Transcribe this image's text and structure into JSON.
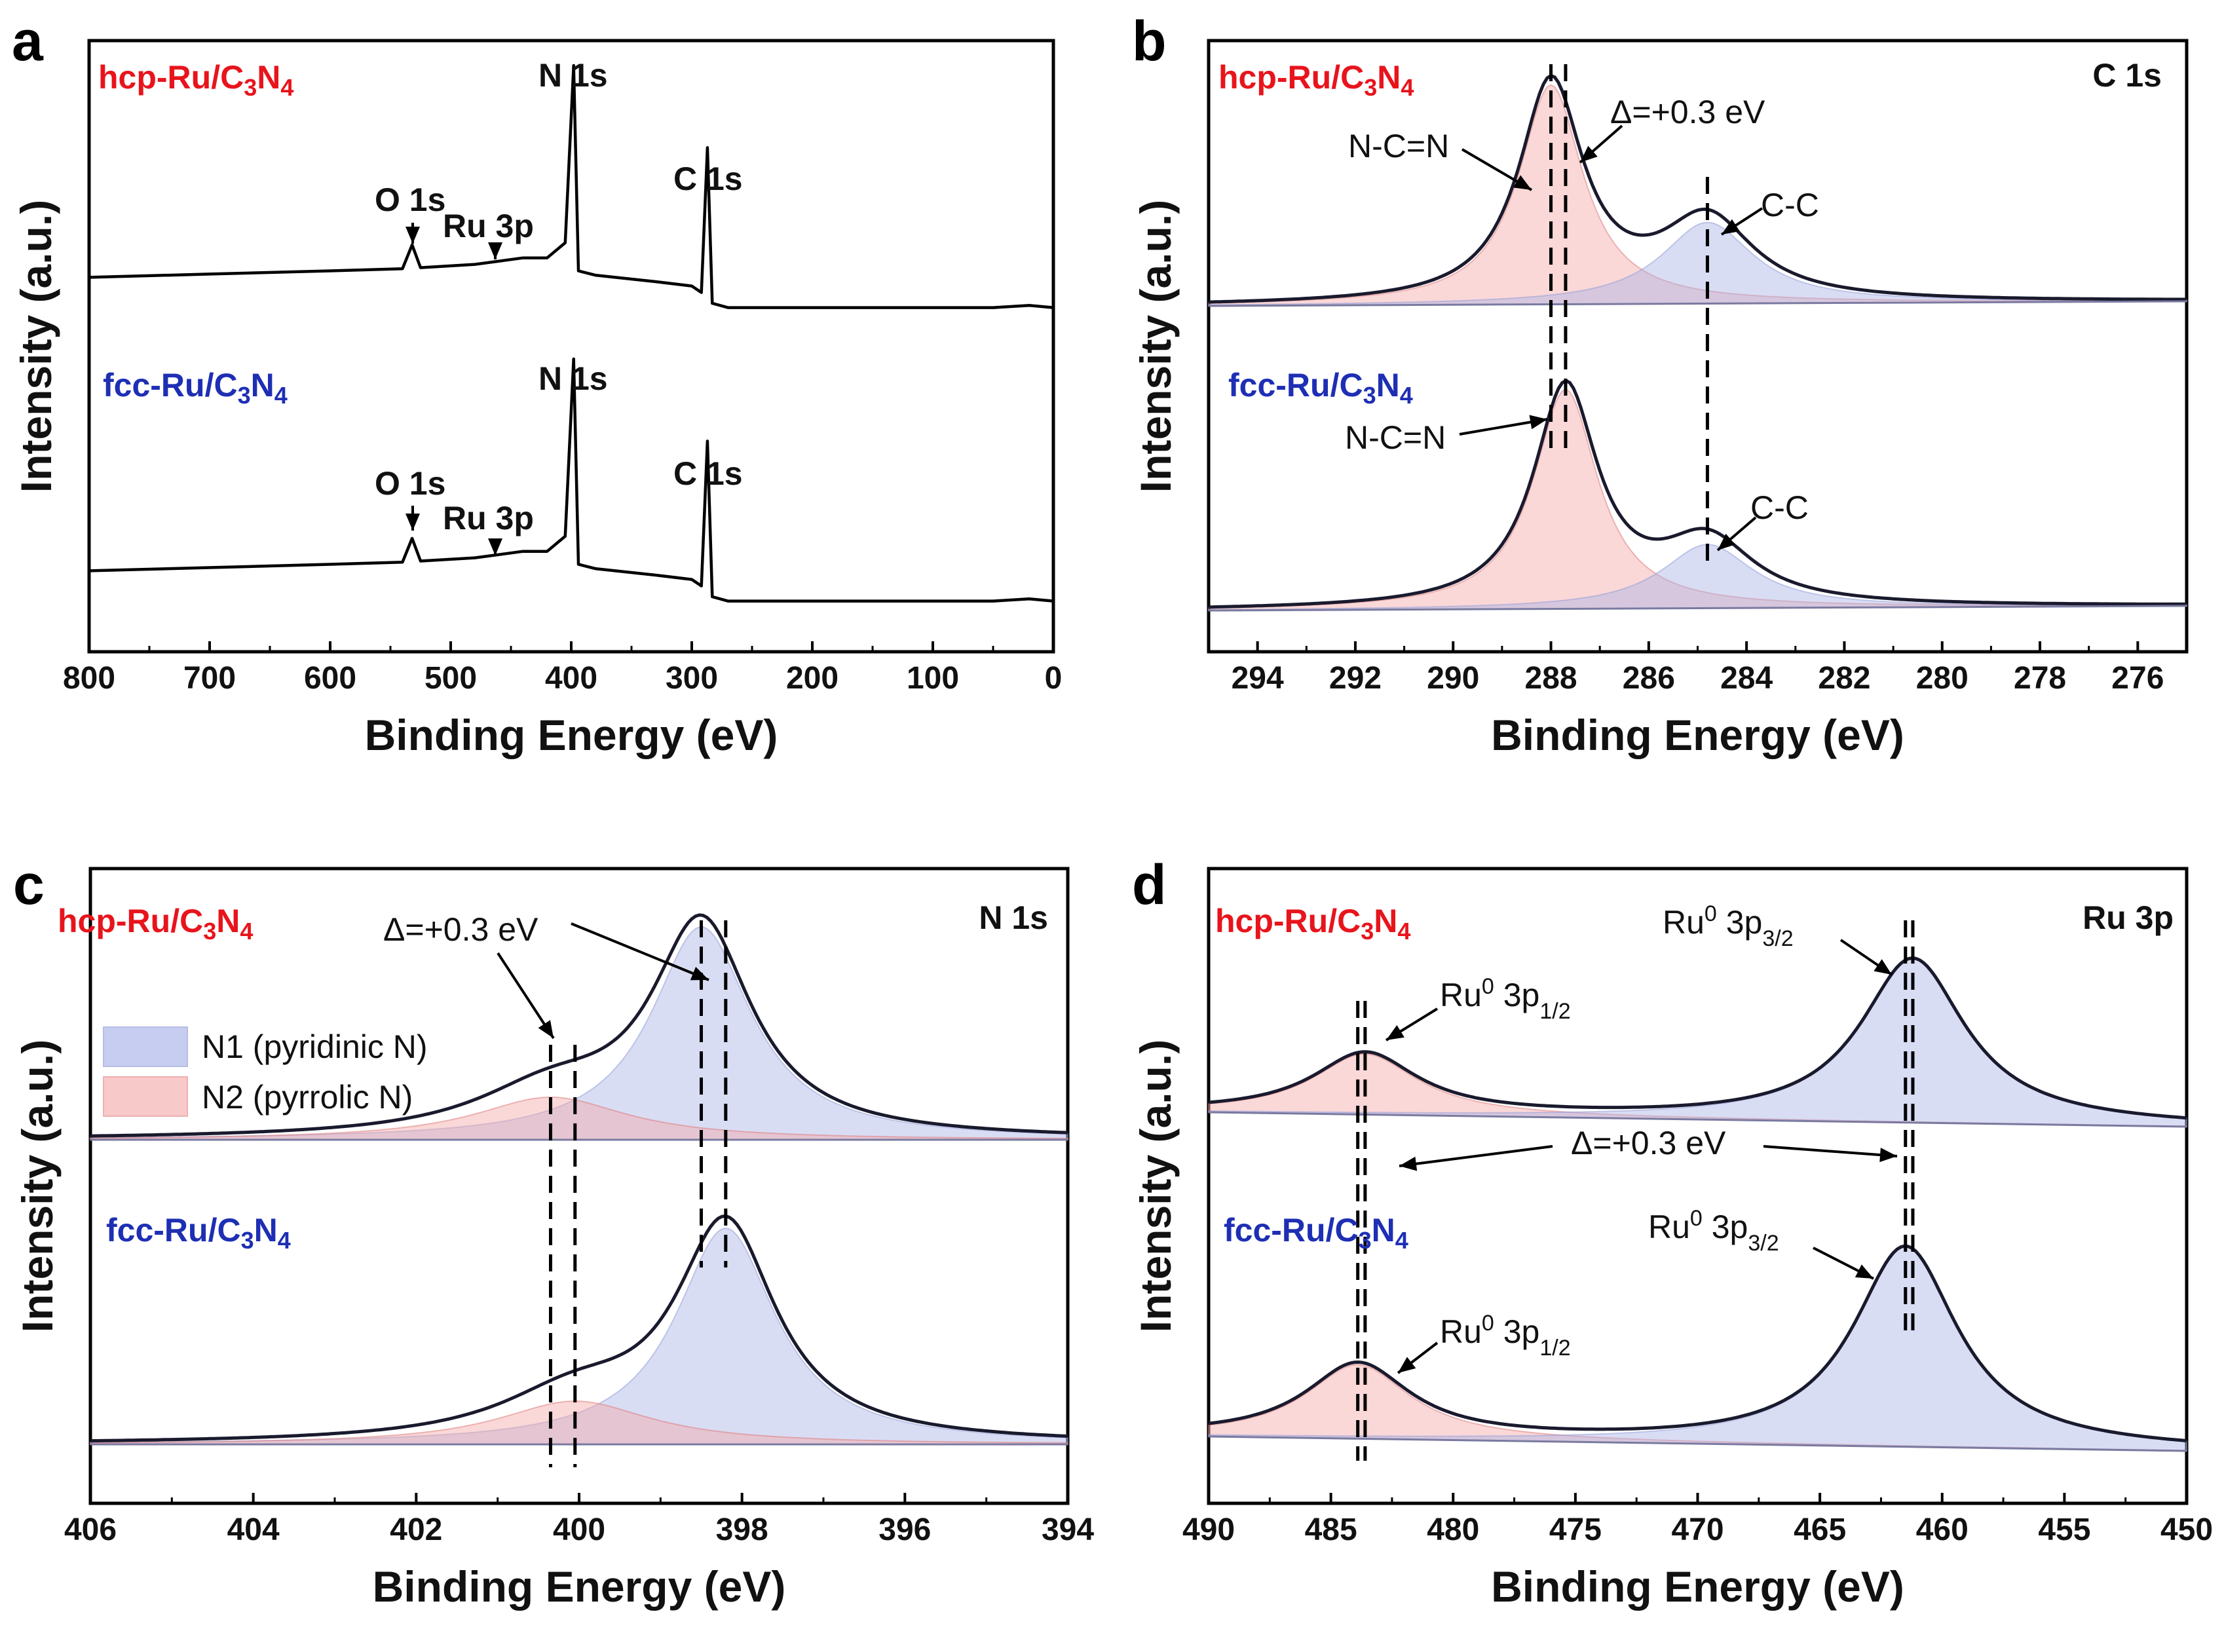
{
  "chart_data": [
    {
      "panel": "a",
      "type": "line",
      "title": "",
      "xlabel": "Binding Energy (eV)",
      "ylabel": "Intensity (a.u.)",
      "xlim": [
        800,
        0
      ],
      "xticks": [
        800,
        700,
        600,
        500,
        400,
        300,
        200,
        100,
        0
      ],
      "samples": [
        {
          "name": "hcp-Ru/C3N4",
          "color": "#e8141c"
        },
        {
          "name": "fcc-Ru/C3N4",
          "color": "#1e2fb4"
        }
      ],
      "peaks": [
        {
          "label": "N 1s",
          "x": 398
        },
        {
          "label": "C 1s",
          "x": 287
        },
        {
          "label": "O 1s",
          "x": 532
        },
        {
          "label": "Ru 3p",
          "x": 462
        }
      ],
      "series": [
        {
          "name": "hcp-Ru/C3N4 survey",
          "x": [
            800,
            700,
            600,
            540,
            532,
            525,
            480,
            440,
            420,
            405,
            398,
            394,
            380,
            330,
            300,
            292,
            287,
            283,
            270,
            150,
            50,
            20,
            0
          ],
          "y": [
            0.02,
            0.035,
            0.05,
            0.06,
            0.17,
            0.065,
            0.08,
            0.11,
            0.11,
            0.18,
            1.0,
            0.05,
            0.03,
            0.0,
            -0.02,
            -0.05,
            0.62,
            -0.1,
            -0.12,
            -0.12,
            -0.12,
            -0.11,
            -0.12
          ]
        },
        {
          "name": "fcc-Ru/C3N4 survey",
          "x": [
            800,
            700,
            600,
            540,
            532,
            525,
            480,
            440,
            420,
            405,
            398,
            394,
            380,
            330,
            300,
            292,
            287,
            283,
            270,
            150,
            50,
            20,
            0
          ],
          "y": [
            0.02,
            0.035,
            0.05,
            0.06,
            0.17,
            0.065,
            0.08,
            0.11,
            0.11,
            0.18,
            1.0,
            0.05,
            0.03,
            0.0,
            -0.02,
            -0.05,
            0.62,
            -0.1,
            -0.12,
            -0.12,
            -0.12,
            -0.11,
            -0.12
          ]
        }
      ]
    },
    {
      "panel": "b",
      "type": "line",
      "title": "C 1s",
      "xlabel": "Binding Energy (eV)",
      "ylabel": "Intensity (a.u.)",
      "xlim": [
        295,
        275
      ],
      "xticks": [
        294,
        292,
        290,
        288,
        286,
        284,
        282,
        280,
        278,
        276
      ],
      "samples": [
        {
          "name": "hcp-Ru/C3N4",
          "color": "#e8141c"
        },
        {
          "name": "fcc-Ru/C3N4",
          "color": "#1e2fb4"
        }
      ],
      "components": [
        "N-C=N",
        "C-C"
      ],
      "delta_label": "Δ=+0.3 eV",
      "reference_lines": [
        288.0,
        287.7,
        284.8
      ],
      "series": [
        {
          "name": "hcp-Ru/C3N4",
          "peaks": [
            {
              "label": "N-C=N",
              "center": 288.0,
              "height": 1.0,
              "width": 0.8
            },
            {
              "label": "C-C",
              "center": 284.8,
              "height": 0.37,
              "width": 1.15
            }
          ]
        },
        {
          "name": "fcc-Ru/C3N4",
          "peaks": [
            {
              "label": "N-C=N",
              "center": 287.7,
              "height": 1.0,
              "width": 0.8
            },
            {
              "label": "C-C",
              "center": 284.8,
              "height": 0.29,
              "width": 1.15
            }
          ]
        }
      ]
    },
    {
      "panel": "c",
      "type": "line",
      "title": "N 1s",
      "xlabel": "Binding Energy (eV)",
      "ylabel": "Intensity (a.u.)",
      "xlim": [
        406,
        394
      ],
      "xticks": [
        406,
        404,
        402,
        400,
        398,
        396,
        394
      ],
      "samples": [
        {
          "name": "hcp-Ru/C3N4",
          "color": "#e8141c"
        },
        {
          "name": "fcc-Ru/C3N4",
          "color": "#1e2fb4"
        }
      ],
      "legend": [
        {
          "label": "N1 (pyridinic N)",
          "color": "#8f9bd6"
        },
        {
          "label": "N2 (pyrrolic N)",
          "color": "#ee9a9a"
        }
      ],
      "delta_label": "Δ=+0.3 eV",
      "reference_lines": [
        400.35,
        400.05,
        398.5,
        398.2
      ],
      "series": [
        {
          "name": "hcp-Ru/C3N4",
          "peaks": [
            {
              "label": "N1 (pyridinic N)",
              "center": 398.5,
              "height": 1.0,
              "width": 0.75
            },
            {
              "label": "N2 (pyrrolic N)",
              "center": 400.35,
              "height": 0.2,
              "width": 1.15
            }
          ]
        },
        {
          "name": "fcc-Ru/C3N4",
          "peaks": [
            {
              "label": "N1 (pyridinic N)",
              "center": 398.2,
              "height": 1.0,
              "width": 0.75
            },
            {
              "label": "N2 (pyrrolic N)",
              "center": 400.05,
              "height": 0.2,
              "width": 1.15
            }
          ]
        }
      ]
    },
    {
      "panel": "d",
      "type": "line",
      "title": "Ru 3p",
      "xlabel": "Binding Energy (eV)",
      "ylabel": "Intensity (a.u.)",
      "xlim": [
        490,
        450
      ],
      "xticks": [
        490,
        485,
        480,
        475,
        470,
        465,
        460,
        455,
        450
      ],
      "samples": [
        {
          "name": "hcp-Ru/C3N4",
          "color": "#e8141c"
        },
        {
          "name": "fcc-Ru/C3N4",
          "color": "#1e2fb4"
        }
      ],
      "delta_label": "Δ=+0.3 eV",
      "reference_lines": [
        483.9,
        483.6,
        461.5,
        461.2
      ],
      "series": [
        {
          "name": "hcp-Ru/C3N4",
          "peaks": [
            {
              "label": "Ru0 3p1/2",
              "center": 483.6,
              "height": 0.37,
              "width": 2.6
            },
            {
              "label": "Ru0 3p3/2",
              "center": 461.2,
              "height": 1.0,
              "width": 2.6
            }
          ]
        },
        {
          "name": "fcc-Ru/C3N4",
          "peaks": [
            {
              "label": "Ru0 3p1/2",
              "center": 483.9,
              "height": 0.37,
              "width": 2.6
            },
            {
              "label": "Ru0 3p3/2",
              "center": 461.5,
              "height": 1.0,
              "width": 2.6
            }
          ]
        }
      ]
    }
  ],
  "panel_labels": [
    "a",
    "b",
    "c",
    "d"
  ],
  "annotations": {
    "N1s": "N 1s",
    "C1s": "C 1s",
    "O1s": "O 1s",
    "Ru3p": "Ru 3p",
    "NCN": "N-C=N",
    "CC": "C-C",
    "delta": "Δ=+0.3 eV",
    "ru0": "Ru",
    "ru0_sup": "0",
    "p3": " 3p",
    "p3_sub": "3/2",
    "p1_sub": "1/2",
    "hcp_main": "hcp-Ru/C",
    "fcc_main": "fcc-Ru/C",
    "n_main": "N",
    "three": "3",
    "four": "4"
  }
}
